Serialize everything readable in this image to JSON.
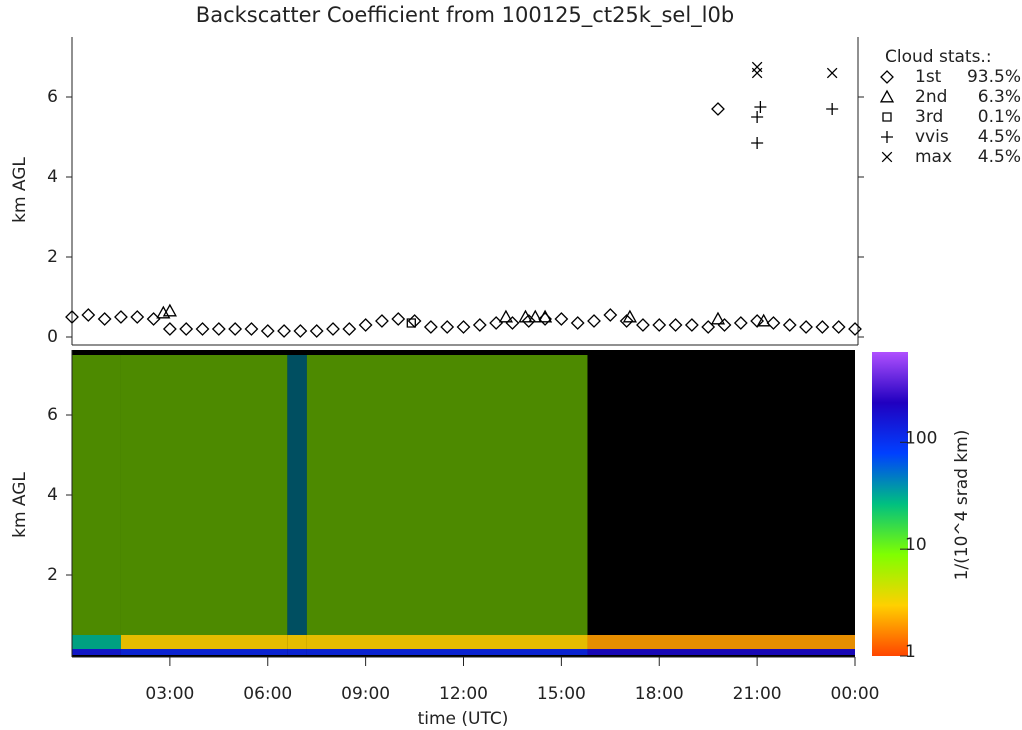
{
  "chart_data": [
    {
      "type": "scatter",
      "title": "Backscatter Coefficient from 100125_ct25k_sel_l0b",
      "ylabel": "km AGL",
      "xlim": [
        0,
        24
      ],
      "ylim": [
        0,
        7.5
      ],
      "yticks": [
        0,
        2,
        4,
        6
      ],
      "legend_title": "Cloud stats.:",
      "legend": "right",
      "color": "#000000",
      "series": [
        {
          "name": "1st",
          "marker": "diamond",
          "stat": {
            "value": 93.5,
            "label": "93.5%"
          },
          "x": [
            0,
            0.5,
            1,
            1.5,
            2,
            2.5,
            3,
            3.5,
            4,
            4.5,
            5,
            5.5,
            6,
            6.5,
            7,
            7.5,
            8,
            8.5,
            9,
            9.5,
            10,
            10.5,
            11,
            11.5,
            12,
            12.5,
            13,
            13.5,
            14,
            14.5,
            15,
            15.5,
            16,
            16.5,
            17,
            17.5,
            18,
            18.5,
            19,
            19.5,
            20,
            20.5,
            21,
            21.5,
            22,
            22.5,
            23,
            23.5,
            24,
            19.8
          ],
          "values": [
            0.5,
            0.55,
            0.45,
            0.5,
            0.5,
            0.45,
            0.2,
            0.2,
            0.2,
            0.2,
            0.2,
            0.2,
            0.15,
            0.15,
            0.15,
            0.15,
            0.2,
            0.2,
            0.3,
            0.4,
            0.45,
            0.4,
            0.25,
            0.25,
            0.25,
            0.3,
            0.35,
            0.35,
            0.4,
            0.45,
            0.45,
            0.35,
            0.4,
            0.55,
            0.4,
            0.3,
            0.3,
            0.3,
            0.3,
            0.25,
            0.3,
            0.35,
            0.4,
            0.35,
            0.3,
            0.25,
            0.25,
            0.25,
            0.2,
            5.7
          ]
        },
        {
          "name": "2nd",
          "marker": "triangle",
          "stat": {
            "value": 6.3,
            "label": "6.3%"
          },
          "x": [
            2.8,
            3.0,
            13.3,
            13.9,
            14.2,
            14.5,
            17.1,
            19.8,
            21.2
          ],
          "values": [
            0.6,
            0.65,
            0.5,
            0.5,
            0.5,
            0.5,
            0.5,
            0.45,
            0.4
          ]
        },
        {
          "name": "3rd",
          "marker": "square",
          "stat": {
            "value": 0.1,
            "label": "0.1%"
          },
          "x": [
            10.4
          ],
          "values": [
            0.35
          ]
        },
        {
          "name": "vvis",
          "marker": "plus",
          "stat": {
            "value": 4.5,
            "label": "4.5%"
          },
          "x": [
            21.0,
            21.0,
            21.1,
            23.3
          ],
          "values": [
            4.85,
            5.5,
            5.75,
            5.7
          ]
        },
        {
          "name": "max",
          "marker": "cross",
          "stat": {
            "value": 4.5,
            "label": "4.5%"
          },
          "x": [
            21.0,
            21.0,
            23.3
          ],
          "values": [
            6.6,
            6.75,
            6.6
          ]
        }
      ]
    },
    {
      "type": "heatmap",
      "ylabel": "km AGL",
      "xlabel": "time (UTC)",
      "xlim": [
        0,
        24
      ],
      "xticks": [
        {
          "value": 3,
          "label": "03:00"
        },
        {
          "value": 6,
          "label": "06:00"
        },
        {
          "value": 9,
          "label": "09:00"
        },
        {
          "value": 12,
          "label": "12:00"
        },
        {
          "value": 15,
          "label": "15:00"
        },
        {
          "value": 18,
          "label": "18:00"
        },
        {
          "value": 21,
          "label": "21:00"
        },
        {
          "value": 24,
          "label": "00:00"
        }
      ],
      "ylim": [
        0,
        7.5
      ],
      "yticks": [
        2,
        4,
        6
      ],
      "x_bins": [
        0,
        1.5,
        6.6,
        7.2,
        15.8,
        24
      ],
      "y_bins": [
        0,
        0.15,
        0.5,
        7.5
      ],
      "z": [
        [
          150,
          120,
          120,
          120,
          200
        ],
        [
          30,
          3,
          3,
          3,
          2
        ],
        [
          8,
          8,
          40,
          8,
          null
        ]
      ],
      "zlim": [
        1,
        700
      ],
      "zticks": [
        1,
        10,
        100
      ],
      "z_log": true,
      "zlabel": "1/(10^4 srad km)",
      "colormap": [
        "#ff4500",
        "#ffd000",
        "#80ff00",
        "#00c080",
        "#0040ff",
        "#2000c0",
        "#b050ff"
      ]
    }
  ]
}
